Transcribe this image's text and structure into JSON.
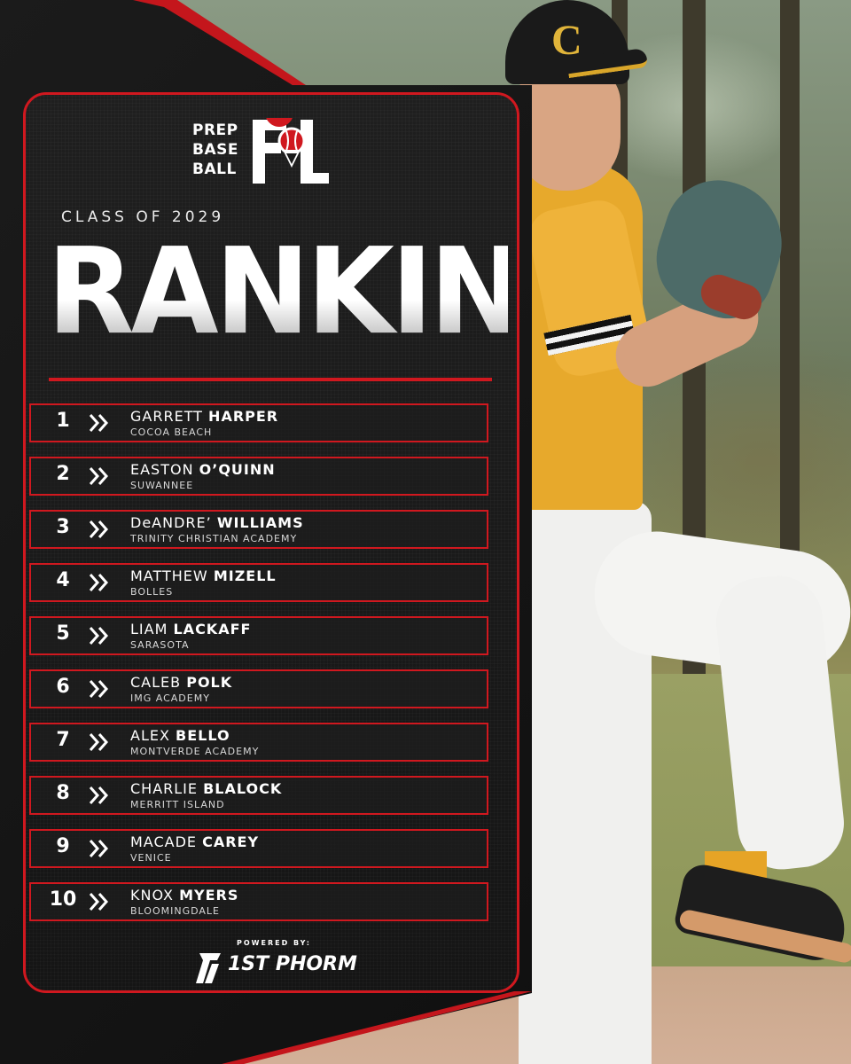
{
  "brand": {
    "logo_lines": [
      "PREP",
      "BASE",
      "BALL"
    ],
    "logo_state": "FL"
  },
  "header": {
    "class_label": "CLASS OF 2029",
    "title": "RANKINGS"
  },
  "rankings": [
    {
      "rank": "1",
      "first": "GARRETT",
      "last": "HARPER",
      "school": "COCOA BEACH"
    },
    {
      "rank": "2",
      "first": "EASTON",
      "last": "O’QUINN",
      "school": "SUWANNEE"
    },
    {
      "rank": "3",
      "first": "DeANDRE’",
      "last": "WILLIAMS",
      "school": "TRINITY CHRISTIAN ACADEMY"
    },
    {
      "rank": "4",
      "first": "MATTHEW",
      "last": "MIZELL",
      "school": "BOLLES"
    },
    {
      "rank": "5",
      "first": "LIAM",
      "last": "LACKAFF",
      "school": "SARASOTA"
    },
    {
      "rank": "6",
      "first": "CALEB",
      "last": "POLK",
      "school": "IMG ACADEMY"
    },
    {
      "rank": "7",
      "first": "ALEX",
      "last": "BELLO",
      "school": "MONTVERDE ACADEMY"
    },
    {
      "rank": "8",
      "first": "CHARLIE",
      "last": "BLALOCK",
      "school": "MERRITT ISLAND"
    },
    {
      "rank": "9",
      "first": "MACADE",
      "last": "CAREY",
      "school": "VENICE"
    },
    {
      "rank": "10",
      "first": "KNOX",
      "last": "MYERS",
      "school": "BLOOMINGDALE"
    }
  ],
  "sponsor": {
    "powered_by": "POWERED BY:",
    "name": "1ST PHORM"
  },
  "colors": {
    "accent_red": "#d0181f",
    "card_bg": "#1a1a1a",
    "jersey_gold": "#e7a92c"
  },
  "icons": {
    "rank_chevron": "double-chevron-right-icon",
    "logo_mark": "baseball-pin-icon",
    "sponsor_mark": "1st-phorm-logo"
  }
}
